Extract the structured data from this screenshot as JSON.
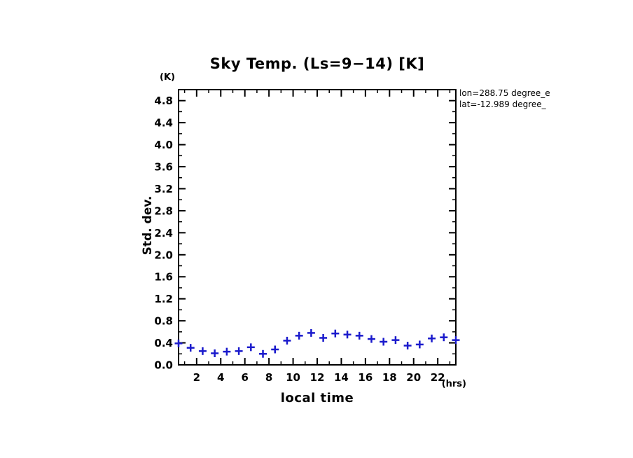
{
  "title": "Sky Temp. (Ls=9−14) [K]",
  "axis_unit_top": "(K)",
  "axis_unit_x": "(hrs)",
  "annotation": {
    "line1": "lon=288.75 degree_e",
    "line2": "lat=-12.989 degree_"
  },
  "chart_data": {
    "type": "scatter",
    "marker": "plus",
    "marker_color": "#1a1acc",
    "title": "Sky Temp. (Ls=9−14) [K]",
    "xlabel": "local time",
    "ylabel": "Std. dev.",
    "x_unit": "(hrs)",
    "y_unit": "(K)",
    "xlim": [
      0.5,
      23.5
    ],
    "ylim": [
      0,
      5.0
    ],
    "grid": false,
    "legend": "none",
    "x_major_ticks": [
      2,
      4,
      6,
      8,
      10,
      12,
      14,
      16,
      18,
      20,
      22
    ],
    "x_tick_labels": [
      "2",
      "4",
      "6",
      "8",
      "10",
      "12",
      "14",
      "16",
      "18",
      "20",
      "22"
    ],
    "x_minor_step": 1,
    "y_tick_values": [
      0.0,
      0.4,
      0.8,
      1.2,
      1.6,
      2.0,
      2.4,
      2.8,
      3.2,
      3.6,
      4.0,
      4.4,
      4.8
    ],
    "y_tick_labels": [
      "0.0",
      "0.4",
      "0.8",
      "1.2",
      "1.6",
      "2.0",
      "2.4",
      "2.8",
      "3.2",
      "3.6",
      "4.0",
      "4.4",
      "4.8"
    ],
    "y_minor_step": 0.2,
    "x": [
      0.5,
      1.5,
      2.5,
      3.5,
      4.5,
      5.5,
      6.5,
      7.5,
      8.5,
      9.5,
      10.5,
      11.5,
      12.5,
      13.5,
      14.5,
      15.5,
      16.5,
      17.5,
      18.5,
      19.5,
      20.5,
      21.5,
      22.5,
      23.5
    ],
    "y": [
      0.39,
      0.31,
      0.25,
      0.21,
      0.24,
      0.25,
      0.32,
      0.2,
      0.28,
      0.44,
      0.53,
      0.58,
      0.49,
      0.57,
      0.55,
      0.53,
      0.47,
      0.42,
      0.45,
      0.35,
      0.37,
      0.48,
      0.5,
      0.45
    ]
  }
}
